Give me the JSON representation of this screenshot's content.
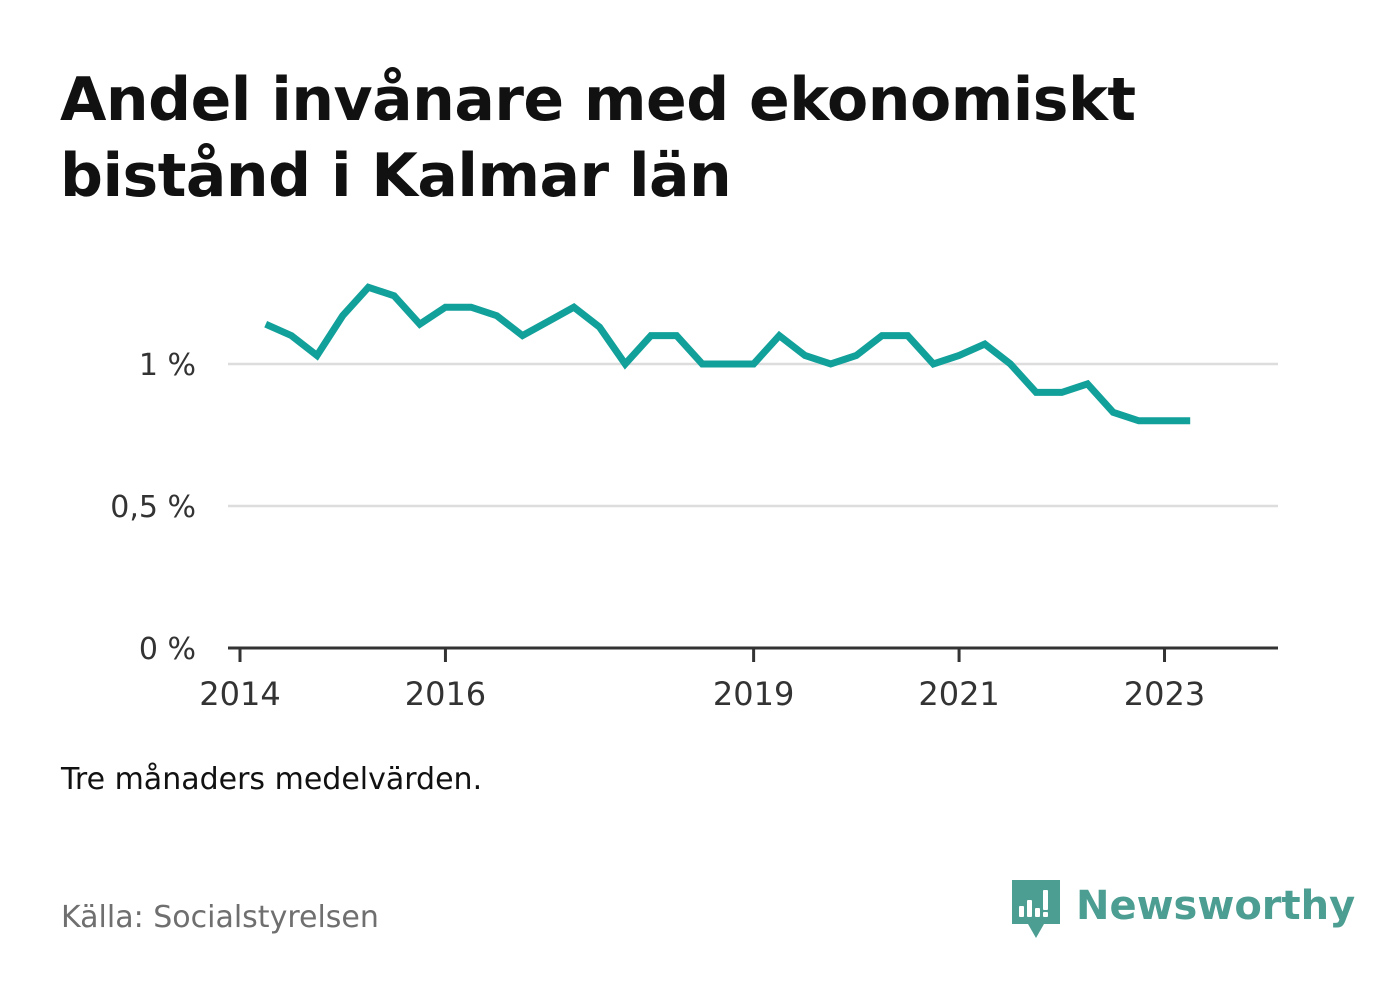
{
  "title": "Andel invånare med ekonomiskt bistånd i Kalmar län",
  "note": "Tre månaders medelvärden.",
  "source": "Källa: Socialstyrelsen",
  "brand": {
    "name": "Newsworthy",
    "icon": "newsworthy-logo-icon",
    "color": "#4c9e92"
  },
  "colors": {
    "line": "#12a09a",
    "grid": "#dddddd",
    "axis": "#333333"
  },
  "chart_data": {
    "type": "line",
    "title": "Andel invånare med ekonomiskt bistånd i Kalmar län",
    "xlabel": "",
    "ylabel": "",
    "y_unit": "%",
    "xlim": [
      "2014-01",
      "2023-09"
    ],
    "ylim": [
      0,
      1.3
    ],
    "x_ticks": [
      {
        "x": "2014-01",
        "label": "2014"
      },
      {
        "x": "2016-01",
        "label": "2016"
      },
      {
        "x": "2019-01",
        "label": "2019"
      },
      {
        "x": "2021-01",
        "label": "2021"
      },
      {
        "x": "2023-01",
        "label": "2023"
      }
    ],
    "y_ticks": [
      {
        "y": 0,
        "label": "0 %"
      },
      {
        "y": 0.5,
        "label": "0,5 %"
      },
      {
        "y": 1.0,
        "label": "1 %"
      }
    ],
    "grid": true,
    "legend": "none",
    "series": [
      {
        "x": [
          "2014-04",
          "2014-07",
          "2014-10",
          "2015-01",
          "2015-04",
          "2015-07",
          "2015-10",
          "2016-01",
          "2016-04",
          "2016-07",
          "2016-10",
          "2017-01",
          "2017-04",
          "2017-07",
          "2017-10",
          "2018-01",
          "2018-04",
          "2018-07",
          "2018-10",
          "2019-01",
          "2019-04",
          "2019-07",
          "2019-10",
          "2020-01",
          "2020-04",
          "2020-07",
          "2020-10",
          "2021-01",
          "2021-04",
          "2021-07",
          "2021-10",
          "2022-01",
          "2022-04",
          "2022-07",
          "2022-10",
          "2023-01",
          "2023-04"
        ],
        "values": [
          1.14,
          1.1,
          1.03,
          1.17,
          1.27,
          1.24,
          1.14,
          1.2,
          1.2,
          1.17,
          1.1,
          1.15,
          1.2,
          1.13,
          1.0,
          1.1,
          1.1,
          1.0,
          1.0,
          1.0,
          1.1,
          1.03,
          1.0,
          1.03,
          1.1,
          1.1,
          1.0,
          1.03,
          1.07,
          1.0,
          0.9,
          0.9,
          0.93,
          0.83,
          0.8,
          0.8,
          0.8
        ]
      }
    ]
  }
}
